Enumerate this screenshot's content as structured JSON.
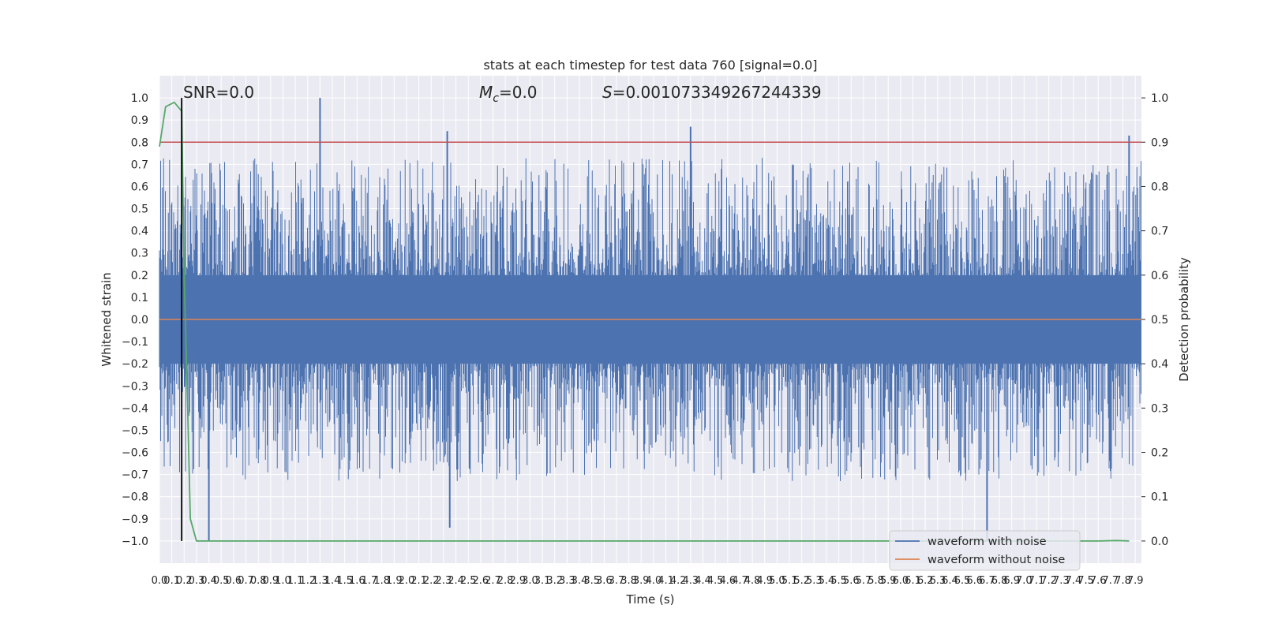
{
  "chart_data": {
    "type": "line",
    "title": "stats at each timestep for test data 760 [signal=0.0]",
    "xlabel": "Time (s)",
    "ylabel": "Whitened strain",
    "ylabel_right": "Detection probability",
    "xlim": [
      0.0,
      7.95
    ],
    "ylim": [
      -1.1,
      1.1
    ],
    "ylim_right": [
      -0.05,
      1.05
    ],
    "x_ticks": [
      0.0,
      0.1,
      0.2,
      0.3,
      0.4,
      0.5,
      0.6,
      0.7,
      0.8,
      0.9,
      1.0,
      1.1,
      1.2,
      1.3,
      1.4,
      1.5,
      1.6,
      1.7,
      1.8,
      1.9,
      2.0,
      2.1,
      2.2,
      2.3,
      2.4,
      2.5,
      2.6,
      2.7,
      2.8,
      2.9,
      3.0,
      3.1,
      3.2,
      3.3,
      3.4,
      3.5,
      3.6,
      3.7,
      3.8,
      3.9,
      4.0,
      4.1,
      4.2,
      4.3,
      4.4,
      4.5,
      4.6,
      4.7,
      4.8,
      4.9,
      5.0,
      5.1,
      5.2,
      5.3,
      5.4,
      5.5,
      5.6,
      5.7,
      5.8,
      5.9,
      6.0,
      6.1,
      6.2,
      6.3,
      6.4,
      6.5,
      6.6,
      6.7,
      6.8,
      6.9,
      7.0,
      7.1,
      7.2,
      7.3,
      7.4,
      7.5,
      7.6,
      7.7,
      7.8,
      7.9
    ],
    "y_ticks": [
      1.0,
      0.9,
      0.8,
      0.7,
      0.6,
      0.5,
      0.4,
      0.3,
      0.2,
      0.1,
      0.0,
      -0.1,
      -0.2,
      -0.3,
      -0.4,
      -0.5,
      -0.6,
      -0.7,
      -0.8,
      -0.9,
      -1.0
    ],
    "y_ticks_right": [
      1.0,
      0.9,
      0.8,
      0.7,
      0.6,
      0.5,
      0.4,
      0.3,
      0.2,
      0.1,
      0.0
    ],
    "grid": true,
    "legend_position": "lower right",
    "series": [
      {
        "name": "waveform with noise",
        "color": "#4c72b0",
        "kind": "noise",
        "description_range": [
          -1.0,
          1.0
        ]
      },
      {
        "name": "waveform without noise",
        "color": "#dd8452",
        "x": [
          0.0,
          7.95
        ],
        "y": [
          0.0,
          0.0
        ]
      }
    ],
    "noise_peaks": [
      {
        "x": 1.3,
        "y": 1.0
      },
      {
        "x": 2.33,
        "y": 0.85
      },
      {
        "x": 4.3,
        "y": 0.87
      },
      {
        "x": 7.85,
        "y": 0.83
      },
      {
        "x": 0.4,
        "y": -1.0
      },
      {
        "x": 2.35,
        "y": -0.94
      },
      {
        "x": 6.7,
        "y": -1.0
      }
    ],
    "probability_series": {
      "color": "#55a868",
      "x": [
        0.0,
        0.05,
        0.12,
        0.18,
        0.2,
        0.23,
        0.25,
        0.3,
        0.35,
        0.4,
        1.0,
        3.0,
        5.0,
        7.0,
        7.6,
        7.75,
        7.85
      ],
      "y": [
        0.89,
        0.98,
        0.99,
        0.97,
        0.6,
        0.28,
        0.05,
        0.0,
        0.0,
        0.0,
        0.0,
        0.0,
        0.0,
        0.0,
        0.0,
        0.001,
        0.0
      ]
    },
    "threshold": {
      "value": 0.9,
      "axis": "right",
      "color": "#c44e52"
    },
    "marker": {
      "x": 0.18,
      "color": "#000000"
    },
    "annotations": {
      "snr": "SNR=0.0",
      "mc_symbol": "M",
      "mc_subscript": "c",
      "mc_value": "=0.0",
      "s_symbol": "S",
      "s_value": "=0.001073349267244339"
    }
  }
}
